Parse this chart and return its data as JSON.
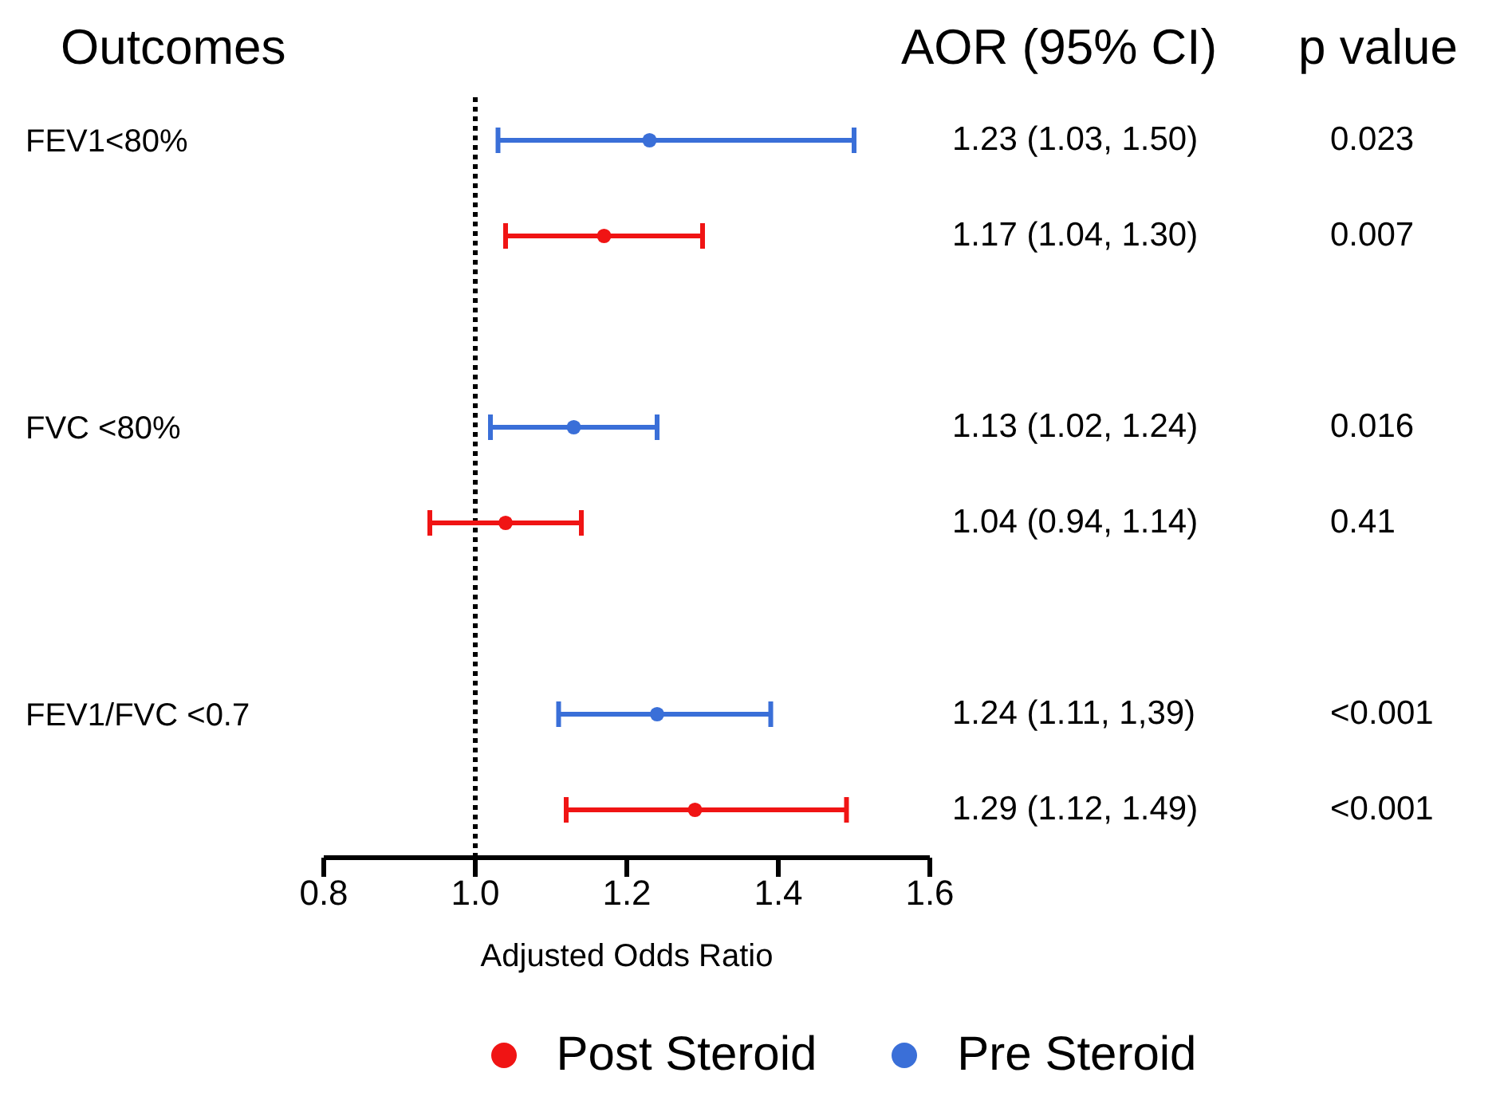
{
  "chart_data": {
    "type": "scatter",
    "orientation": "horizontal",
    "ylabel": "Outcomes",
    "xlabel": "Adjusted Odds Ratio",
    "categories": [
      "FEV1<80%",
      null,
      null,
      "FVC <80%",
      null,
      null,
      "FEV1/FVC <0.7",
      null
    ],
    "xlim": [
      0.8,
      1.6
    ],
    "xticks": [
      {
        "value": 0.8,
        "label": "0.8"
      },
      {
        "value": 1.0,
        "label": "1.0"
      },
      {
        "value": 1.2,
        "label": "1.2"
      },
      {
        "value": 1.4,
        "label": "1.4"
      },
      {
        "value": 1.6,
        "label": "1.6"
      }
    ],
    "series": [
      {
        "name": "Post Steroid",
        "color": "#f01414",
        "values": [
          null,
          1.17,
          null,
          null,
          1.04,
          null,
          null,
          1.29
        ],
        "errors": [
          null,
          [
            1.04,
            1.3
          ],
          null,
          null,
          [
            0.94,
            1.14
          ],
          null,
          null,
          [
            1.12,
            1.49
          ]
        ]
      },
      {
        "name": "Pre Steroid",
        "color": "#3a6fd8",
        "values": [
          1.23,
          null,
          null,
          1.13,
          null,
          null,
          1.24,
          null
        ],
        "errors": [
          [
            1.03,
            1.5
          ],
          null,
          null,
          [
            1.02,
            1.24
          ],
          null,
          null,
          [
            1.11,
            1.39
          ],
          null
        ]
      }
    ],
    "ref_lines": [
      {
        "axis": "x",
        "value": 1.0,
        "color": "#000000",
        "line_style": "dotted"
      }
    ],
    "annotations": [
      "AOR (95% CI)",
      "p value",
      "1.23 (1.03, 1.50)",
      "0.023",
      "1.17 (1.04, 1.30)",
      "0.007",
      "1.13 (1.02, 1.24)",
      "0.016",
      "1.04 (0.94, 1.14)",
      "0.41",
      "1.24 (1.11, 1,39)",
      "<0.001",
      "1.29 (1.12, 1.49)",
      "<0.001"
    ],
    "marker": "circle",
    "legend": "bottom"
  }
}
